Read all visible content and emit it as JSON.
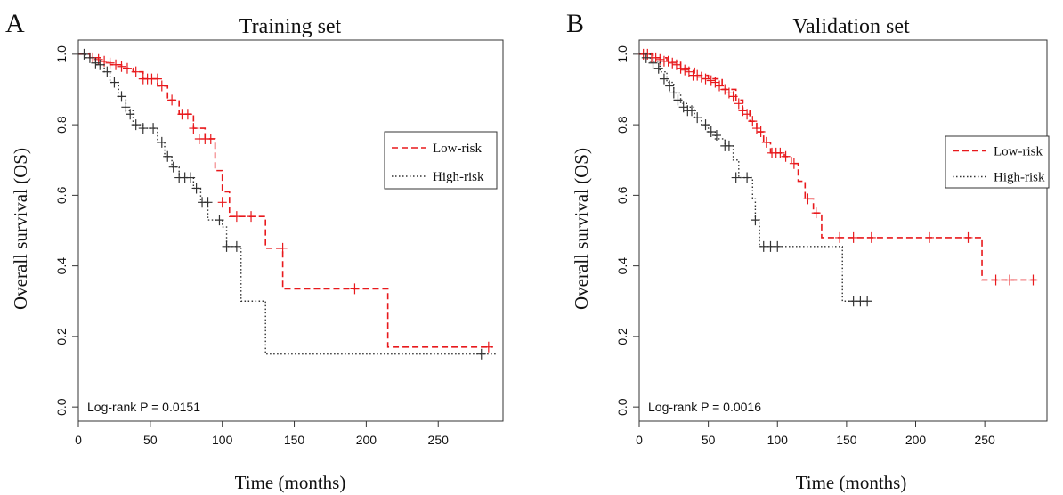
{
  "chart_data": [
    {
      "type": "line",
      "panel_label": "A",
      "title": "Training set",
      "xlabel": "Time (months)",
      "ylabel": "Overall survival (OS)",
      "xlim": [
        0,
        295
      ],
      "ylim": [
        -0.04,
        1.04
      ],
      "xticks": [
        0,
        50,
        100,
        150,
        200,
        250
      ],
      "yticks": [
        "0.0",
        "0.2",
        "0.4",
        "0.6",
        "0.8",
        "1.0"
      ],
      "grid": false,
      "legend_position": "right",
      "annotation": "Log-rank  P = 0.0151",
      "series": [
        {
          "name": "Low-risk",
          "color": "#e8191c",
          "line_style": "dashed",
          "steps": [
            [
              0,
              1.0
            ],
            [
              8,
              0.99
            ],
            [
              15,
              0.98
            ],
            [
              22,
              0.97
            ],
            [
              30,
              0.96
            ],
            [
              38,
              0.95
            ],
            [
              45,
              0.93
            ],
            [
              55,
              0.91
            ],
            [
              62,
              0.87
            ],
            [
              70,
              0.83
            ],
            [
              80,
              0.79
            ],
            [
              88,
              0.76
            ],
            [
              95,
              0.67
            ],
            [
              100,
              0.61
            ],
            [
              105,
              0.54
            ],
            [
              130,
              0.45
            ],
            [
              142,
              0.335
            ],
            [
              215,
              0.17
            ],
            [
              288,
              0.17
            ]
          ],
          "censor": [
            [
              10,
              0.99
            ],
            [
              14,
              0.985
            ],
            [
              18,
              0.98
            ],
            [
              22,
              0.975
            ],
            [
              26,
              0.97
            ],
            [
              30,
              0.965
            ],
            [
              34,
              0.96
            ],
            [
              40,
              0.95
            ],
            [
              45,
              0.93
            ],
            [
              48,
              0.93
            ],
            [
              51,
              0.93
            ],
            [
              55,
              0.93
            ],
            [
              58,
              0.91
            ],
            [
              65,
              0.87
            ],
            [
              72,
              0.83
            ],
            [
              76,
              0.83
            ],
            [
              80,
              0.79
            ],
            [
              84,
              0.76
            ],
            [
              88,
              0.76
            ],
            [
              92,
              0.76
            ],
            [
              100,
              0.58
            ],
            [
              110,
              0.54
            ],
            [
              120,
              0.54
            ],
            [
              142,
              0.45
            ],
            [
              192,
              0.335
            ],
            [
              285,
              0.17
            ]
          ]
        },
        {
          "name": "High-risk",
          "color": "#333333",
          "line_style": "dotted",
          "steps": [
            [
              0,
              1.0
            ],
            [
              5,
              0.99
            ],
            [
              12,
              0.97
            ],
            [
              18,
              0.95
            ],
            [
              22,
              0.92
            ],
            [
              28,
              0.88
            ],
            [
              33,
              0.84
            ],
            [
              38,
              0.8
            ],
            [
              45,
              0.79
            ],
            [
              55,
              0.75
            ],
            [
              60,
              0.71
            ],
            [
              65,
              0.68
            ],
            [
              70,
              0.65
            ],
            [
              80,
              0.62
            ],
            [
              85,
              0.58
            ],
            [
              90,
              0.53
            ],
            [
              100,
              0.51
            ],
            [
              103,
              0.455
            ],
            [
              113,
              0.3
            ],
            [
              130,
              0.15
            ],
            [
              290,
              0.15
            ]
          ],
          "censor": [
            [
              4,
              1.0
            ],
            [
              8,
              0.99
            ],
            [
              12,
              0.975
            ],
            [
              15,
              0.97
            ],
            [
              20,
              0.95
            ],
            [
              25,
              0.92
            ],
            [
              30,
              0.88
            ],
            [
              33,
              0.85
            ],
            [
              36,
              0.83
            ],
            [
              40,
              0.8
            ],
            [
              45,
              0.79
            ],
            [
              52,
              0.79
            ],
            [
              58,
              0.75
            ],
            [
              62,
              0.71
            ],
            [
              66,
              0.68
            ],
            [
              70,
              0.65
            ],
            [
              74,
              0.65
            ],
            [
              78,
              0.65
            ],
            [
              82,
              0.62
            ],
            [
              86,
              0.58
            ],
            [
              90,
              0.58
            ],
            [
              98,
              0.53
            ],
            [
              103,
              0.455
            ],
            [
              110,
              0.455
            ],
            [
              280,
              0.15
            ]
          ]
        }
      ]
    },
    {
      "type": "line",
      "panel_label": "B",
      "title": "Validation set",
      "xlabel": "Time (months)",
      "ylabel": "Overall survival (OS)",
      "xlim": [
        0,
        295
      ],
      "ylim": [
        -0.04,
        1.04
      ],
      "xticks": [
        0,
        50,
        100,
        150,
        200,
        250
      ],
      "yticks": [
        "0.0",
        "0.2",
        "0.4",
        "0.6",
        "0.8",
        "1.0"
      ],
      "grid": false,
      "legend_position": "right",
      "annotation": "Log-rank  P = 0.0016",
      "series": [
        {
          "name": "Low-risk",
          "color": "#e8191c",
          "line_style": "dashed",
          "steps": [
            [
              0,
              1.0
            ],
            [
              10,
              0.99
            ],
            [
              20,
              0.98
            ],
            [
              30,
              0.96
            ],
            [
              40,
              0.94
            ],
            [
              50,
              0.93
            ],
            [
              60,
              0.9
            ],
            [
              70,
              0.87
            ],
            [
              75,
              0.84
            ],
            [
              80,
              0.81
            ],
            [
              85,
              0.78
            ],
            [
              90,
              0.75
            ],
            [
              95,
              0.72
            ],
            [
              105,
              0.71
            ],
            [
              110,
              0.69
            ],
            [
              115,
              0.64
            ],
            [
              120,
              0.59
            ],
            [
              126,
              0.55
            ],
            [
              132,
              0.48
            ],
            [
              248,
              0.36
            ],
            [
              288,
              0.36
            ]
          ],
          "censor": [
            [
              3,
              1.0
            ],
            [
              6,
              1.0
            ],
            [
              9,
              0.99
            ],
            [
              12,
              0.99
            ],
            [
              15,
              0.985
            ],
            [
              18,
              0.98
            ],
            [
              21,
              0.98
            ],
            [
              24,
              0.975
            ],
            [
              27,
              0.97
            ],
            [
              30,
              0.96
            ],
            [
              33,
              0.955
            ],
            [
              36,
              0.95
            ],
            [
              39,
              0.94
            ],
            [
              42,
              0.94
            ],
            [
              45,
              0.935
            ],
            [
              48,
              0.93
            ],
            [
              52,
              0.925
            ],
            [
              55,
              0.92
            ],
            [
              58,
              0.91
            ],
            [
              62,
              0.9
            ],
            [
              65,
              0.89
            ],
            [
              68,
              0.88
            ],
            [
              72,
              0.86
            ],
            [
              75,
              0.84
            ],
            [
              78,
              0.83
            ],
            [
              82,
              0.81
            ],
            [
              85,
              0.79
            ],
            [
              88,
              0.78
            ],
            [
              92,
              0.75
            ],
            [
              96,
              0.72
            ],
            [
              99,
              0.72
            ],
            [
              102,
              0.72
            ],
            [
              106,
              0.71
            ],
            [
              112,
              0.69
            ],
            [
              122,
              0.59
            ],
            [
              128,
              0.55
            ],
            [
              145,
              0.48
            ],
            [
              155,
              0.48
            ],
            [
              168,
              0.48
            ],
            [
              210,
              0.48
            ],
            [
              238,
              0.48
            ],
            [
              258,
              0.36
            ],
            [
              268,
              0.36
            ],
            [
              285,
              0.36
            ]
          ]
        },
        {
          "name": "High-risk",
          "color": "#333333",
          "line_style": "dotted",
          "steps": [
            [
              0,
              1.0
            ],
            [
              8,
              0.98
            ],
            [
              15,
              0.95
            ],
            [
              20,
              0.92
            ],
            [
              25,
              0.89
            ],
            [
              30,
              0.86
            ],
            [
              35,
              0.85
            ],
            [
              40,
              0.82
            ],
            [
              45,
              0.8
            ],
            [
              50,
              0.78
            ],
            [
              55,
              0.76
            ],
            [
              62,
              0.74
            ],
            [
              68,
              0.7
            ],
            [
              72,
              0.65
            ],
            [
              82,
              0.59
            ],
            [
              84,
              0.53
            ],
            [
              87,
              0.455
            ],
            [
              147,
              0.3
            ],
            [
              165,
              0.3
            ]
          ],
          "censor": [
            [
              5,
              0.99
            ],
            [
              10,
              0.975
            ],
            [
              14,
              0.96
            ],
            [
              18,
              0.93
            ],
            [
              22,
              0.91
            ],
            [
              25,
              0.89
            ],
            [
              28,
              0.87
            ],
            [
              32,
              0.85
            ],
            [
              35,
              0.84
            ],
            [
              38,
              0.84
            ],
            [
              42,
              0.82
            ],
            [
              48,
              0.8
            ],
            [
              52,
              0.78
            ],
            [
              56,
              0.77
            ],
            [
              62,
              0.74
            ],
            [
              65,
              0.74
            ],
            [
              70,
              0.65
            ],
            [
              78,
              0.65
            ],
            [
              84,
              0.53
            ],
            [
              90,
              0.455
            ],
            [
              95,
              0.455
            ],
            [
              100,
              0.455
            ],
            [
              155,
              0.3
            ],
            [
              160,
              0.3
            ],
            [
              165,
              0.3
            ]
          ]
        }
      ]
    }
  ]
}
